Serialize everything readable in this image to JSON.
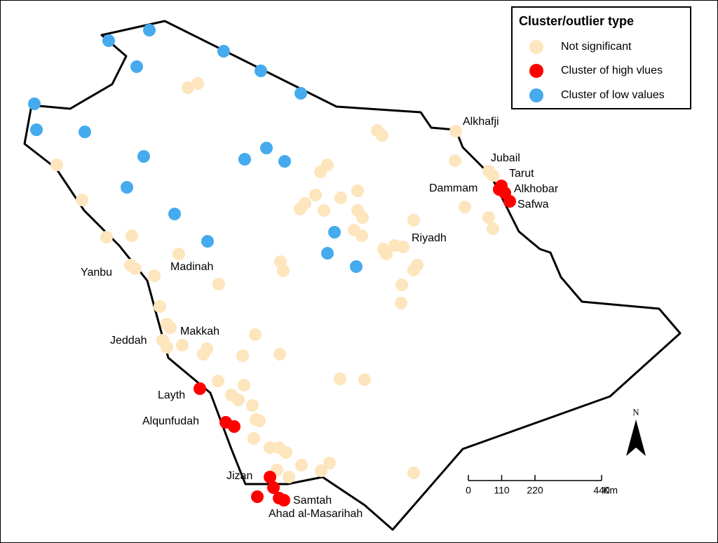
{
  "legend": {
    "title": "Cluster/outlier type",
    "items": [
      "Not significant",
      "Cluster of high vlues",
      "Cluster of low values"
    ]
  },
  "labels": [
    "Alkhafji",
    "Jubail",
    "Tarut",
    "Dammam",
    "Alkhobar",
    "Safwa",
    "Riyadh",
    "Madinah",
    "Yanbu",
    "Makkah",
    "Jeddah",
    "Layth",
    "Alqunfudah",
    "Jizan",
    "Samtah",
    "Ahad al-Masarihah"
  ],
  "north": "N",
  "scale": {
    "ticks": [
      0,
      110,
      220,
      440
    ],
    "unit": "Km"
  }
}
